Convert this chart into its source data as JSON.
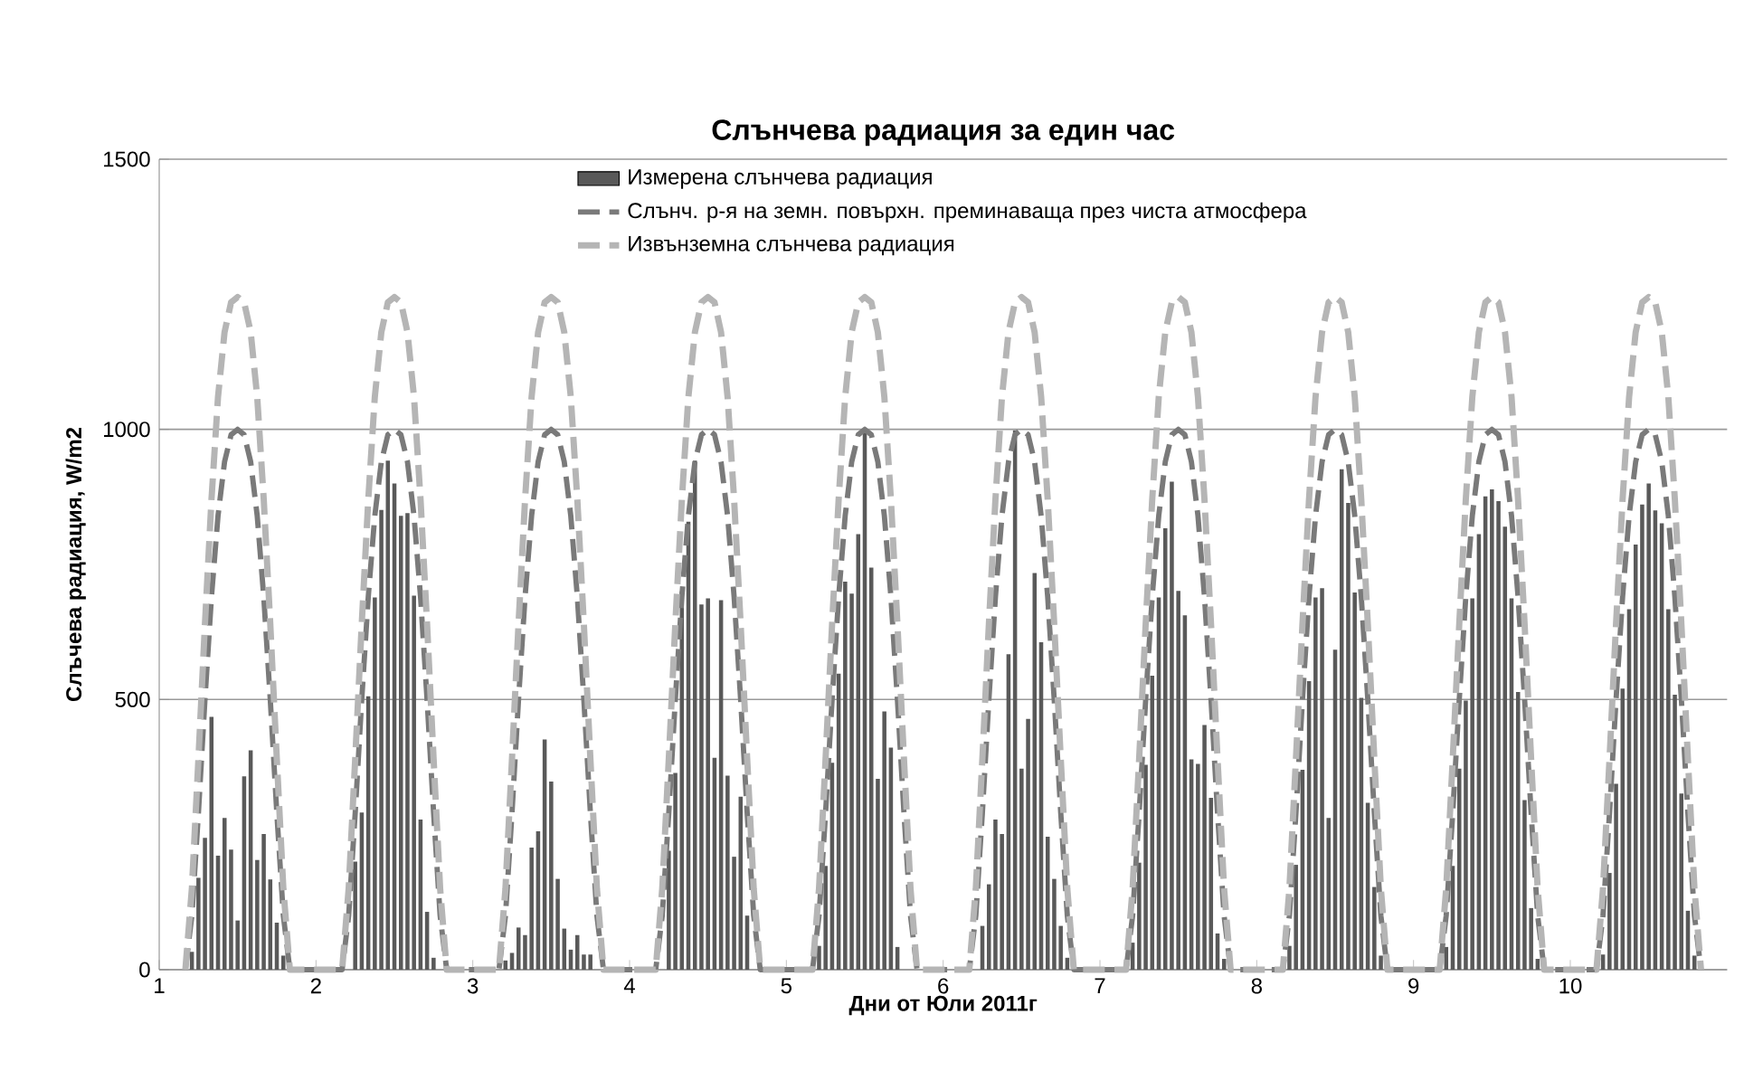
{
  "chart_data": {
    "type": "line",
    "title": "Слънчева радиация за един час",
    "xlabel": "Дни от Юли 2011г",
    "ylabel": "Слъчева радиация, W/m2",
    "xlim": [
      1,
      11
    ],
    "xticks": [
      1,
      2,
      3,
      4,
      5,
      6,
      7,
      8,
      9,
      10
    ],
    "ylim": [
      0,
      1500
    ],
    "yticks": [
      0,
      500,
      1000,
      1500
    ],
    "grid": "y",
    "legend": "top",
    "marker": "none",
    "x": [
      1.1667,
      1.2083,
      1.25,
      1.2917,
      1.3333,
      1.375,
      1.4167,
      1.4583,
      1.5,
      1.5417,
      1.5833,
      1.625,
      1.6667,
      1.7083,
      1.75,
      1.7917,
      1.8333,
      2.1667,
      2.2083,
      2.25,
      2.2917,
      2.3333,
      2.375,
      2.4167,
      2.4583,
      2.5,
      2.5417,
      2.5833,
      2.625,
      2.6667,
      2.7083,
      2.75,
      2.7917,
      2.8333,
      3.1667,
      3.2083,
      3.25,
      3.2917,
      3.3333,
      3.375,
      3.4167,
      3.4583,
      3.5,
      3.5417,
      3.5833,
      3.625,
      3.6667,
      3.7083,
      3.75,
      3.7917,
      3.8333,
      4.1667,
      4.2083,
      4.25,
      4.2917,
      4.3333,
      4.375,
      4.4167,
      4.4583,
      4.5,
      4.5417,
      4.5833,
      4.625,
      4.6667,
      4.7083,
      4.75,
      4.7917,
      4.8333,
      5.1667,
      5.2083,
      5.25,
      5.2917,
      5.3333,
      5.375,
      5.4167,
      5.4583,
      5.5,
      5.5417,
      5.5833,
      5.625,
      5.6667,
      5.7083,
      5.75,
      5.7917,
      5.8333,
      6.1667,
      6.2083,
      6.25,
      6.2917,
      6.3333,
      6.375,
      6.4167,
      6.4583,
      6.5,
      6.5417,
      6.5833,
      6.625,
      6.6667,
      6.7083,
      6.75,
      6.7917,
      6.8333,
      7.1667,
      7.2083,
      7.25,
      7.2917,
      7.3333,
      7.375,
      7.4167,
      7.4583,
      7.5,
      7.5417,
      7.5833,
      7.625,
      7.6667,
      7.7083,
      7.75,
      7.7917,
      7.8333,
      8.1667,
      8.2083,
      8.25,
      8.2917,
      8.3333,
      8.375,
      8.4167,
      8.4583,
      8.5,
      8.5417,
      8.5833,
      8.625,
      8.6667,
      8.7083,
      8.75,
      8.7917,
      8.8333,
      9.1667,
      9.2083,
      9.25,
      9.2917,
      9.3333,
      9.375,
      9.4167,
      9.4583,
      9.5,
      9.5417,
      9.5833,
      9.625,
      9.6667,
      9.7083,
      9.75,
      9.7917,
      9.8333,
      10.1667,
      10.2083,
      10.25,
      10.2917,
      10.3333,
      10.375,
      10.4167,
      10.4583,
      10.5,
      10.5417,
      10.5833,
      10.625,
      10.6667,
      10.7083,
      10.75,
      10.7917,
      10.8333
    ],
    "series": [
      {
        "name": "Измерена слънчева радиация",
        "type": "bar",
        "color": "#595959",
        "x": [
          1.2083,
          1.25,
          1.2917,
          1.3333,
          1.375,
          1.4167,
          1.4583,
          1.5,
          1.5417,
          1.5833,
          1.625,
          1.6667,
          1.7083,
          1.75,
          1.7917,
          2.25,
          2.2917,
          2.3333,
          2.375,
          2.4167,
          2.4583,
          2.5,
          2.5417,
          2.5833,
          2.625,
          2.6667,
          2.7083,
          2.75,
          3.2083,
          3.25,
          3.2917,
          3.3333,
          3.375,
          3.4167,
          3.4583,
          3.5,
          3.5417,
          3.5833,
          3.625,
          3.6667,
          3.7083,
          3.75,
          4.25,
          4.2917,
          4.3333,
          4.375,
          4.4167,
          4.4583,
          4.5,
          4.5417,
          4.5833,
          4.625,
          4.6667,
          4.7083,
          4.75,
          5.2083,
          5.25,
          5.2917,
          5.3333,
          5.375,
          5.4167,
          5.4583,
          5.5,
          5.5417,
          5.5833,
          5.625,
          5.6667,
          5.7083,
          6.25,
          6.2917,
          6.3333,
          6.375,
          6.4167,
          6.4583,
          6.5,
          6.5417,
          6.5833,
          6.625,
          6.6667,
          6.7083,
          6.75,
          6.7917,
          7.2083,
          7.25,
          7.2917,
          7.3333,
          7.375,
          7.4167,
          7.4583,
          7.5,
          7.5417,
          7.5833,
          7.625,
          7.6667,
          7.7083,
          7.75,
          7.7917,
          8.2083,
          8.25,
          8.2917,
          8.3333,
          8.375,
          8.4167,
          8.4583,
          8.5,
          8.5417,
          8.5833,
          8.625,
          8.6667,
          8.7083,
          8.75,
          8.7917,
          9.2083,
          9.25,
          9.2917,
          9.3333,
          9.375,
          9.4167,
          9.4583,
          9.5,
          9.5417,
          9.5833,
          9.625,
          9.6667,
          9.7083,
          9.75,
          9.7917,
          10.2083,
          10.25,
          10.2917,
          10.3333,
          10.375,
          10.4167,
          10.4583,
          10.5,
          10.5417,
          10.5833,
          10.625,
          10.6667,
          10.7083,
          10.75,
          10.7917
        ],
        "values": [
          33,
          170,
          244,
          468,
          211,
          281,
          222,
          91,
          358,
          406,
          203,
          251,
          167,
          87,
          26,
          200,
          291,
          506,
          689,
          851,
          942,
          900,
          840,
          845,
          692,
          278,
          107,
          22,
          17,
          31,
          78,
          64,
          226,
          256,
          426,
          348,
          168,
          76,
          37,
          64,
          28,
          28,
          220,
          364,
          700,
          829,
          942,
          676,
          687,
          392,
          684,
          359,
          209,
          320,
          100,
          44,
          192,
          383,
          548,
          718,
          696,
          806,
          996,
          744,
          353,
          478,
          411,
          42,
          81,
          158,
          278,
          251,
          584,
          998,
          372,
          464,
          734,
          606,
          246,
          168,
          81,
          22,
          50,
          198,
          379,
          544,
          689,
          817,
          903,
          701,
          656,
          389,
          381,
          453,
          318,
          67,
          20,
          44,
          194,
          370,
          534,
          689,
          706,
          281,
          592,
          926,
          864,
          698,
          503,
          309,
          153,
          26,
          42,
          192,
          372,
          498,
          687,
          806,
          876,
          889,
          867,
          820,
          687,
          514,
          314,
          114,
          20,
          28,
          179,
          344,
          520,
          667,
          787,
          861,
          900,
          850,
          826,
          667,
          509,
          326,
          109,
          26
        ]
      },
      {
        "name": "Слънч. р-я на земн. повърхн. преминаваща през чиста атмосфера",
        "line_style": "dashed",
        "color": "#7a7a7a",
        "values": [
          0,
          100,
          290,
          500,
          690,
          840,
          940,
          990,
          1000,
          990,
          940,
          840,
          690,
          500,
          290,
          100,
          0,
          0,
          100,
          290,
          500,
          690,
          840,
          940,
          990,
          1000,
          990,
          940,
          840,
          690,
          500,
          290,
          100,
          0,
          0,
          100,
          290,
          500,
          690,
          840,
          940,
          990,
          1000,
          990,
          940,
          840,
          690,
          500,
          290,
          100,
          0,
          0,
          100,
          290,
          500,
          690,
          840,
          940,
          990,
          1000,
          990,
          940,
          840,
          690,
          500,
          290,
          100,
          0,
          0,
          100,
          290,
          500,
          690,
          840,
          940,
          990,
          1000,
          990,
          940,
          840,
          690,
          500,
          290,
          100,
          0,
          0,
          100,
          290,
          500,
          690,
          840,
          940,
          990,
          1000,
          990,
          940,
          840,
          690,
          500,
          290,
          100,
          0,
          0,
          100,
          290,
          500,
          690,
          840,
          940,
          990,
          1000,
          990,
          940,
          840,
          690,
          500,
          290,
          100,
          0,
          0,
          100,
          290,
          500,
          690,
          840,
          940,
          990,
          1000,
          990,
          940,
          840,
          690,
          500,
          290,
          100,
          0,
          0,
          100,
          290,
          500,
          690,
          840,
          940,
          990,
          1000,
          990,
          940,
          840,
          690,
          500,
          290,
          100,
          0,
          0,
          100,
          290,
          500,
          690,
          840,
          940,
          990,
          1000,
          990,
          940,
          840,
          690,
          500,
          290,
          100,
          0
        ]
      },
      {
        "name": "Извънземна слънчева радиация",
        "line_style": "dashed",
        "color": "#b5b5b5",
        "values": [
          0,
          150,
          390,
          640,
          870,
          1060,
          1180,
          1235,
          1245,
          1235,
          1180,
          1060,
          870,
          640,
          390,
          150,
          0,
          0,
          150,
          390,
          640,
          870,
          1060,
          1180,
          1235,
          1245,
          1235,
          1180,
          1060,
          870,
          640,
          390,
          150,
          0,
          0,
          150,
          390,
          640,
          870,
          1060,
          1180,
          1235,
          1245,
          1235,
          1180,
          1060,
          870,
          640,
          390,
          150,
          0,
          0,
          150,
          390,
          640,
          870,
          1060,
          1180,
          1235,
          1245,
          1235,
          1180,
          1060,
          870,
          640,
          390,
          150,
          0,
          0,
          150,
          390,
          640,
          870,
          1060,
          1180,
          1235,
          1245,
          1235,
          1180,
          1060,
          870,
          640,
          390,
          150,
          0,
          0,
          150,
          390,
          640,
          870,
          1060,
          1180,
          1235,
          1245,
          1235,
          1180,
          1060,
          870,
          640,
          390,
          150,
          0,
          0,
          150,
          390,
          640,
          870,
          1060,
          1180,
          1235,
          1245,
          1235,
          1180,
          1060,
          870,
          640,
          390,
          150,
          0,
          0,
          150,
          390,
          640,
          870,
          1060,
          1180,
          1235,
          1245,
          1235,
          1180,
          1060,
          870,
          640,
          390,
          150,
          0,
          0,
          150,
          390,
          640,
          870,
          1060,
          1180,
          1235,
          1245,
          1235,
          1180,
          1060,
          870,
          640,
          390,
          150,
          0,
          0,
          150,
          390,
          640,
          870,
          1060,
          1180,
          1235,
          1245,
          1235,
          1180,
          1060,
          870,
          640,
          390,
          150,
          0
        ]
      }
    ]
  }
}
